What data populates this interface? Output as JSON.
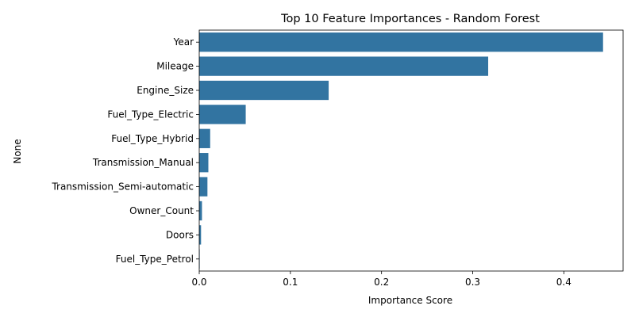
{
  "chart_data": {
    "type": "bar",
    "orientation": "horizontal",
    "title": "Top 10 Feature Importances - Random Forest",
    "xlabel": "Importance Score",
    "ylabel": "None",
    "categories": [
      "Year",
      "Mileage",
      "Engine_Size",
      "Fuel_Type_Electric",
      "Fuel_Type_Hybrid",
      "Transmission_Manual",
      "Transmission_Semi-automatic",
      "Owner_Count",
      "Doors",
      "Fuel_Type_Petrol"
    ],
    "values": [
      0.443,
      0.317,
      0.142,
      0.051,
      0.012,
      0.01,
      0.009,
      0.003,
      0.002,
      0.0005
    ],
    "xlim": [
      0,
      0.465
    ],
    "xticks": [
      0.0,
      0.1,
      0.2,
      0.3,
      0.4
    ],
    "xtick_labels": [
      "0.0",
      "0.1",
      "0.2",
      "0.3",
      "0.4"
    ],
    "bar_color": "#3274a1",
    "grid": false,
    "legend": "none"
  }
}
